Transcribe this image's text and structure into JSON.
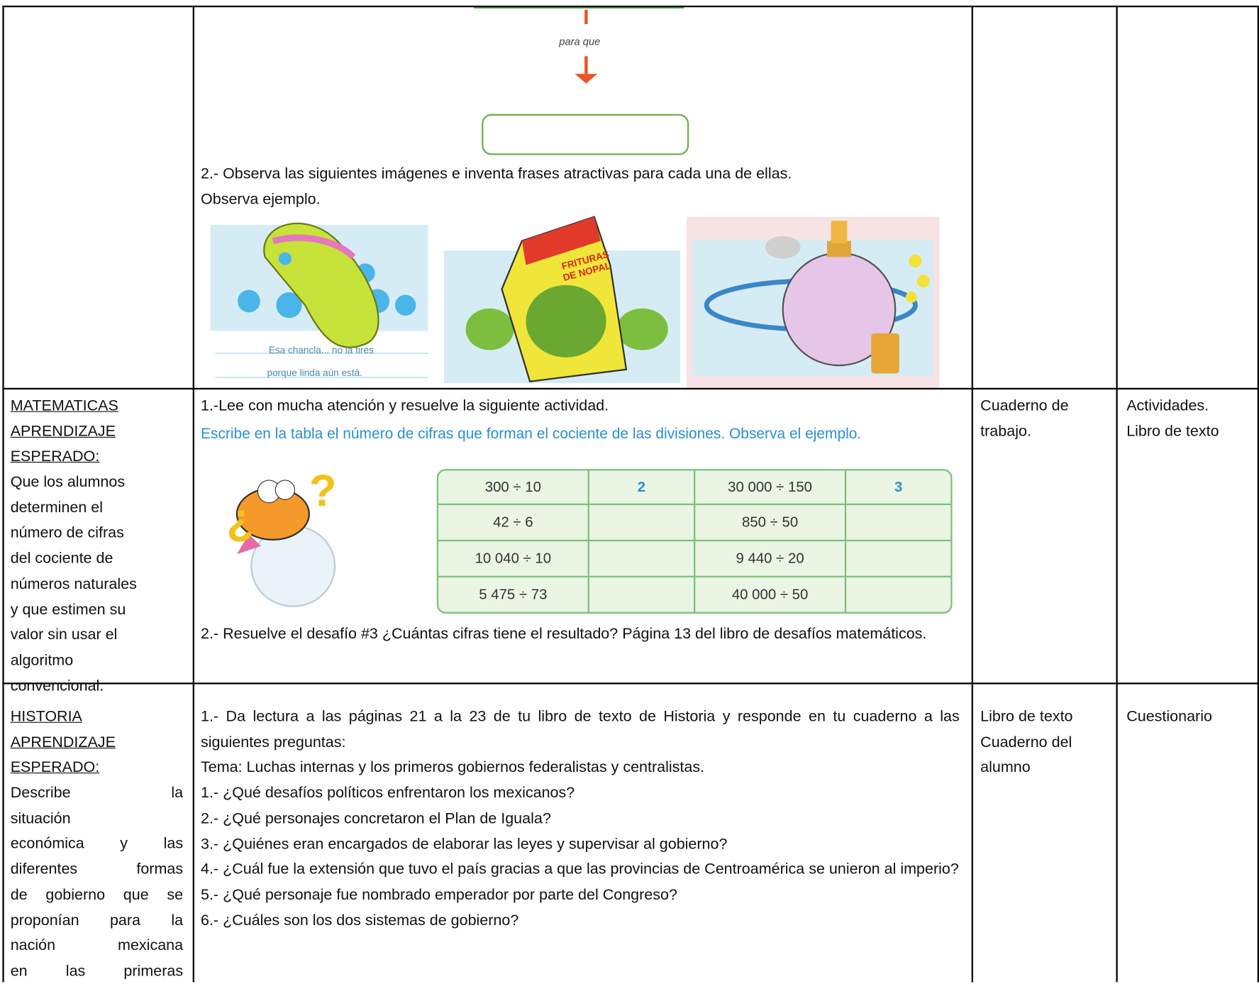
{
  "continuation": {
    "flow_label": "para que",
    "instruction": "2.- Observa las siguientes imágenes e inventa frases atractivas para cada una de ellas.",
    "example": "Observa ejemplo.",
    "image_caption": [
      "Esa chancla... no la tires",
      "porque linda aún está."
    ],
    "package_label": [
      "FRITURAS",
      "DE NOPAL"
    ]
  },
  "math": {
    "subject": [
      "MATEMATICAS",
      "APRENDIZAJE",
      "ESPERADO:"
    ],
    "description": [
      "Que los alumnos",
      "determinen el",
      "número de cifras",
      "del cociente de",
      "números naturales",
      "y que estimen su",
      "valor sin usar el",
      "algoritmo",
      "convencional."
    ],
    "step1": "1.-Lee con mucha atención y resuelve la siguiente actividad.",
    "instruction": "Escribe en la tabla el número de cifras que forman el cociente de las divisiones. Observa el ejemplo.",
    "table": {
      "rows": [
        [
          "300 ÷ 10",
          "2",
          "30 000 ÷ 150",
          "3"
        ],
        [
          "42 ÷ 6",
          null,
          "850 ÷ 50",
          null
        ],
        [
          "10 040 ÷ 10",
          null,
          "9 440 ÷ 20",
          null
        ],
        [
          "5 475 ÷ 73",
          null,
          "40 000 ÷ 50",
          null
        ]
      ]
    },
    "step2": "2.- Resuelve el desafío #3 ¿Cuántas cifras tiene el resultado? Página 13 del libro de desafíos matemáticos.",
    "materials": [
      "Cuaderno de",
      "trabajo."
    ],
    "evaluation": [
      "Actividades.",
      "Libro de texto"
    ]
  },
  "history": {
    "subject": [
      "HISTORIA",
      "APRENDIZAJE",
      "ESPERADO:"
    ],
    "description": [
      "Describe la",
      "situación",
      "económica y las",
      "diferentes formas",
      "de gobierno que se",
      "proponían para la",
      "nación mexicana",
      "en las primeras"
    ],
    "intro": "1.- Da lectura a las páginas 21 a la 23 de tu libro de texto de Historia y responde en tu cuaderno a las siguientes preguntas:",
    "topic": "Tema: Luchas internas y los primeros gobiernos federalistas y centralistas.",
    "questions": [
      "1.- ¿Qué desafíos políticos enfrentaron los mexicanos?",
      "2.- ¿Qué personajes concretaron el Plan de Iguala?",
      "3.- ¿Quiénes eran encargados de elaborar las leyes y supervisar al gobierno?",
      "4.- ¿Cuál fue la extensión que tuvo el país gracias a que las provincias de Centroamérica se unieron al imperio?",
      "5.- ¿Qué personaje fue nombrado emperador por parte del Congreso?",
      "6.- ¿Cuáles son los dos sistemas de gobierno?"
    ],
    "materials": [
      "Libro de texto",
      "Cuaderno del",
      "alumno"
    ],
    "evaluation": [
      "Cuestionario"
    ]
  }
}
